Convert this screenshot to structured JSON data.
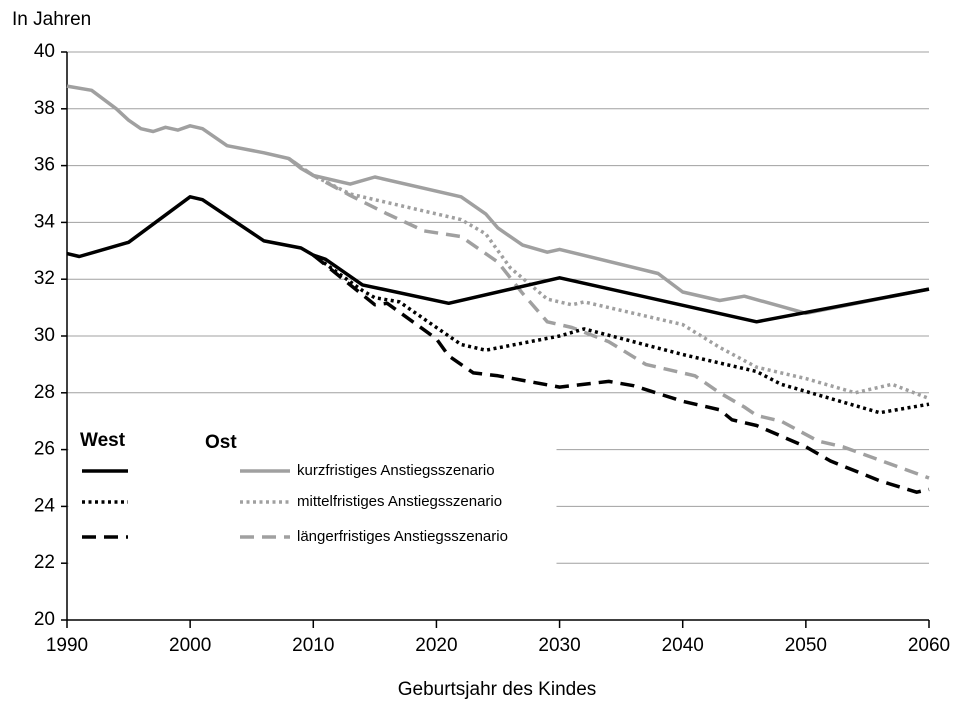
{
  "chart_data": {
    "type": "line",
    "y_unit_label": "In Jahren",
    "x_label": "Geburtsjahr des Kindes",
    "xlim": [
      1990,
      2060
    ],
    "xticks": [
      1990,
      2000,
      2010,
      2020,
      2030,
      2040,
      2050,
      2060
    ],
    "ylim": [
      20,
      40
    ],
    "yticks": [
      20,
      22,
      24,
      26,
      28,
      30,
      32,
      34,
      36,
      38,
      40
    ],
    "grid": true,
    "legend": {
      "groups": [
        "West",
        "Ost"
      ],
      "scenarios": [
        "kurzfristiges Anstiegsszenario",
        "mittelfristiges Anstiegsszenario",
        "längerfristiges Anstiegsszenario"
      ]
    },
    "series": [
      {
        "group": 1,
        "scenario": 0,
        "color": "#a0a0a0",
        "dash": "solid",
        "x": [
          1990,
          1992,
          1994,
          1995,
          1996,
          1997,
          1998,
          1999,
          2000,
          2001,
          2003,
          2006,
          2008,
          2009,
          2010,
          2013,
          2015,
          2022,
          2024,
          2025,
          2027,
          2029,
          2030,
          2038,
          2040,
          2043,
          2045,
          2050,
          2060
        ],
        "values": [
          38.8,
          38.65,
          38.0,
          37.6,
          37.3,
          37.2,
          37.35,
          37.25,
          37.4,
          37.3,
          36.7,
          36.45,
          36.25,
          35.9,
          35.65,
          35.35,
          35.6,
          34.9,
          34.3,
          33.8,
          33.2,
          32.95,
          33.05,
          32.2,
          31.55,
          31.25,
          31.4,
          30.8,
          31.65
        ]
      },
      {
        "group": 1,
        "scenario": 1,
        "color": "#a0a0a0",
        "dash": "dotted",
        "x": [
          2008,
          2010,
          2013,
          2015,
          2022,
          2024,
          2026,
          2029,
          2031,
          2032,
          2040,
          2043,
          2046,
          2050,
          2054,
          2057,
          2060
        ],
        "values": [
          36.25,
          35.65,
          35.0,
          34.8,
          34.1,
          33.6,
          32.4,
          31.3,
          31.1,
          31.2,
          30.4,
          29.6,
          28.9,
          28.5,
          28.0,
          28.3,
          27.8
        ]
      },
      {
        "group": 1,
        "scenario": 2,
        "color": "#a0a0a0",
        "dash": "dashed",
        "x": [
          2008,
          2010,
          2013,
          2016,
          2019,
          2022,
          2025,
          2027,
          2029,
          2031,
          2034,
          2037,
          2041,
          2043,
          2045,
          2046,
          2048,
          2051,
          2053,
          2060
        ],
        "values": [
          36.25,
          35.65,
          34.95,
          34.3,
          33.7,
          33.5,
          32.6,
          31.5,
          30.5,
          30.3,
          29.8,
          29.0,
          28.6,
          28.0,
          27.5,
          27.2,
          27.0,
          26.3,
          26.1,
          25.0
        ]
      },
      {
        "group": 0,
        "scenario": 0,
        "color": "#000000",
        "dash": "solid",
        "x": [
          1990,
          1991,
          1995,
          2000,
          2001,
          2006,
          2009,
          2010,
          2011,
          2014,
          2021,
          2030,
          2046,
          2060
        ],
        "values": [
          32.9,
          32.8,
          33.3,
          34.9,
          34.8,
          33.35,
          33.1,
          32.85,
          32.7,
          31.8,
          31.15,
          32.05,
          30.5,
          31.65
        ]
      },
      {
        "group": 0,
        "scenario": 1,
        "color": "#000000",
        "dash": "dotted",
        "x": [
          2010,
          2014,
          2015,
          2017,
          2019,
          2022,
          2024,
          2030,
          2032,
          2040,
          2046,
          2048,
          2056,
          2060
        ],
        "values": [
          32.85,
          31.6,
          31.35,
          31.2,
          30.6,
          29.7,
          29.5,
          30.0,
          30.25,
          29.35,
          28.75,
          28.3,
          27.3,
          27.6
        ]
      },
      {
        "group": 0,
        "scenario": 2,
        "color": "#000000",
        "dash": "dashed",
        "x": [
          2010,
          2015,
          2016,
          2020,
          2021,
          2023,
          2025,
          2030,
          2034,
          2036,
          2040,
          2043,
          2044,
          2046,
          2050,
          2052,
          2056,
          2059,
          2060
        ],
        "values": [
          32.85,
          31.1,
          31.15,
          29.9,
          29.3,
          28.7,
          28.6,
          28.2,
          28.4,
          28.25,
          27.7,
          27.4,
          27.05,
          26.85,
          26.1,
          25.6,
          24.9,
          24.5,
          24.6
        ]
      }
    ]
  }
}
